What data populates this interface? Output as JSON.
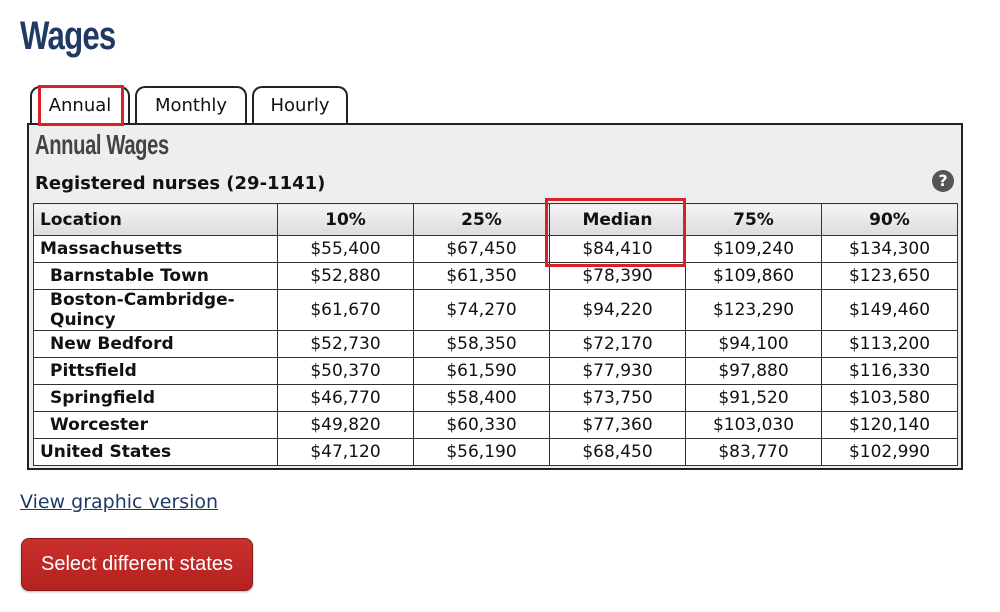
{
  "page": {
    "title": "Wages"
  },
  "tabs": [
    {
      "label": "Annual",
      "active": true
    },
    {
      "label": "Monthly",
      "active": false
    },
    {
      "label": "Hourly",
      "active": false
    }
  ],
  "panel": {
    "title": "Annual Wages",
    "occupation": "Registered nurses (29-1141)",
    "help_icon": "question-circle-icon"
  },
  "table": {
    "headers": [
      "Location",
      "10%",
      "25%",
      "Median",
      "75%",
      "90%"
    ],
    "rows": [
      {
        "location": "Massachusetts",
        "values": [
          "$55,400",
          "$67,450",
          "$84,410",
          "$109,240",
          "$134,300"
        ]
      },
      {
        "location": "Barnstable Town",
        "values": [
          "$52,880",
          "$61,350",
          "$78,390",
          "$109,860",
          "$123,650"
        ]
      },
      {
        "location": "Boston-Cambridge-Quincy",
        "values": [
          "$61,670",
          "$74,270",
          "$94,220",
          "$123,290",
          "$149,460"
        ]
      },
      {
        "location": "New Bedford",
        "values": [
          "$52,730",
          "$58,350",
          "$72,170",
          "$94,100",
          "$113,200"
        ]
      },
      {
        "location": "Pittsfield",
        "values": [
          "$50,370",
          "$61,590",
          "$77,930",
          "$97,880",
          "$116,330"
        ]
      },
      {
        "location": "Springfield",
        "values": [
          "$46,770",
          "$58,400",
          "$73,750",
          "$91,520",
          "$103,580"
        ]
      },
      {
        "location": "Worcester",
        "values": [
          "$49,820",
          "$60,330",
          "$77,360",
          "$103,030",
          "$120,140"
        ]
      },
      {
        "location": "United States",
        "values": [
          "$47,120",
          "$56,190",
          "$68,450",
          "$83,770",
          "$102,990"
        ]
      }
    ]
  },
  "links": {
    "graphic_version": "View graphic version"
  },
  "buttons": {
    "select_states": "Select different states"
  },
  "colors": {
    "title": "#1f3a64",
    "button": "#c9302c",
    "highlight": "#d9212c",
    "panel_bg": "#eeeeee"
  }
}
